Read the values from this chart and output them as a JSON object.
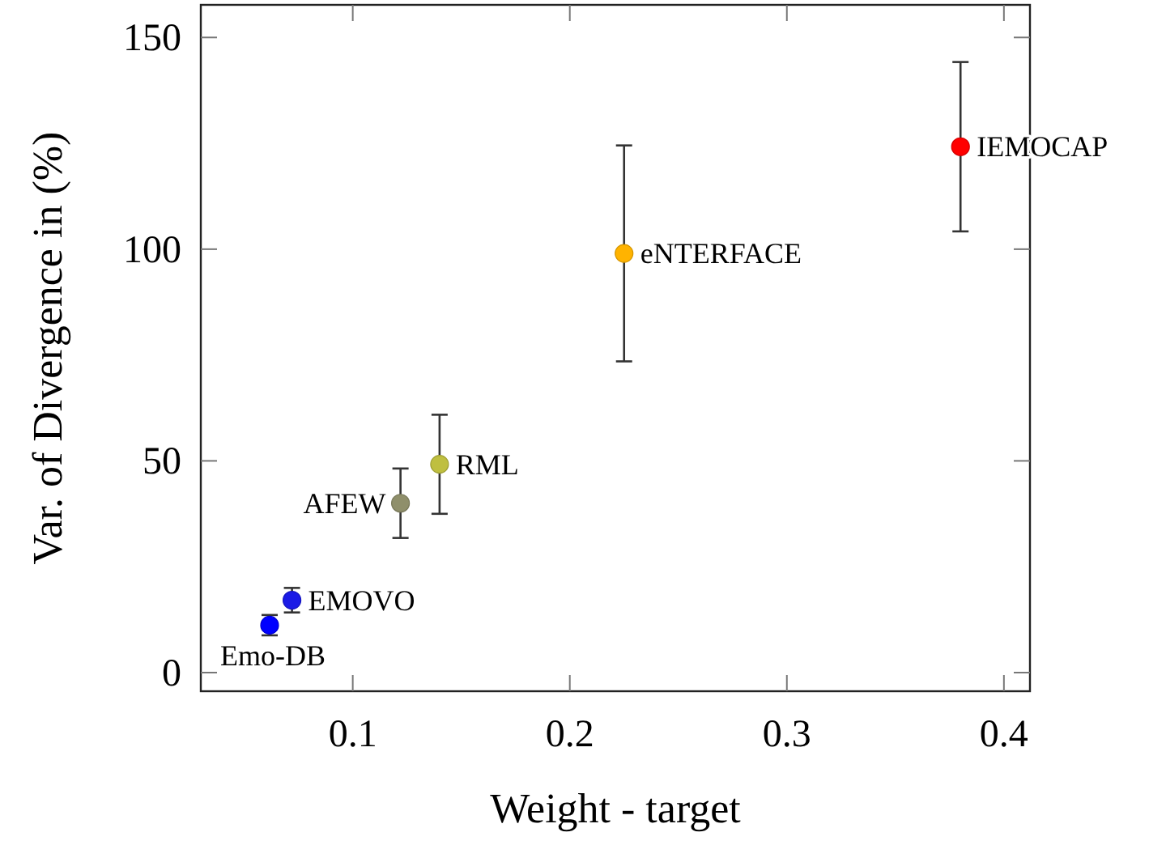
{
  "chart_data": {
    "type": "scatter",
    "xlabel": "Weight - target",
    "ylabel": "Var. of Divergence in (%)",
    "xlim": [
      0.03,
      0.412
    ],
    "ylim": [
      -4.4,
      157.7
    ],
    "xticks": [
      0.1,
      0.2,
      0.3,
      0.4
    ],
    "yticks": [
      0,
      50,
      100,
      150
    ],
    "marker": "circle",
    "series": [
      {
        "name": "Emo-DB",
        "color": "#0000ff",
        "x": [
          0.0617
        ],
        "values": [
          11.2
        ],
        "errors": [
          2.4
        ]
      },
      {
        "name": "EMOVO",
        "color": "#1a1ae6",
        "x": [
          0.072
        ],
        "values": [
          17.1
        ],
        "errors": [
          2.9
        ]
      },
      {
        "name": "AFEW",
        "color": "#8f8f6b",
        "x": [
          0.122
        ],
        "values": [
          40
        ],
        "errors": [
          8.2
        ]
      },
      {
        "name": "RML",
        "color": "#bfbf40",
        "x": [
          0.14
        ],
        "values": [
          49.2
        ],
        "errors": [
          11.7
        ]
      },
      {
        "name": "eNTERFACE",
        "color": "#ffb300",
        "x": [
          0.225
        ],
        "values": [
          99
        ],
        "errors": [
          25.5
        ]
      },
      {
        "name": "IEMOCAP",
        "color": "#ff0000",
        "x": [
          0.38
        ],
        "values": [
          124.2
        ],
        "errors": [
          20
        ]
      }
    ]
  }
}
